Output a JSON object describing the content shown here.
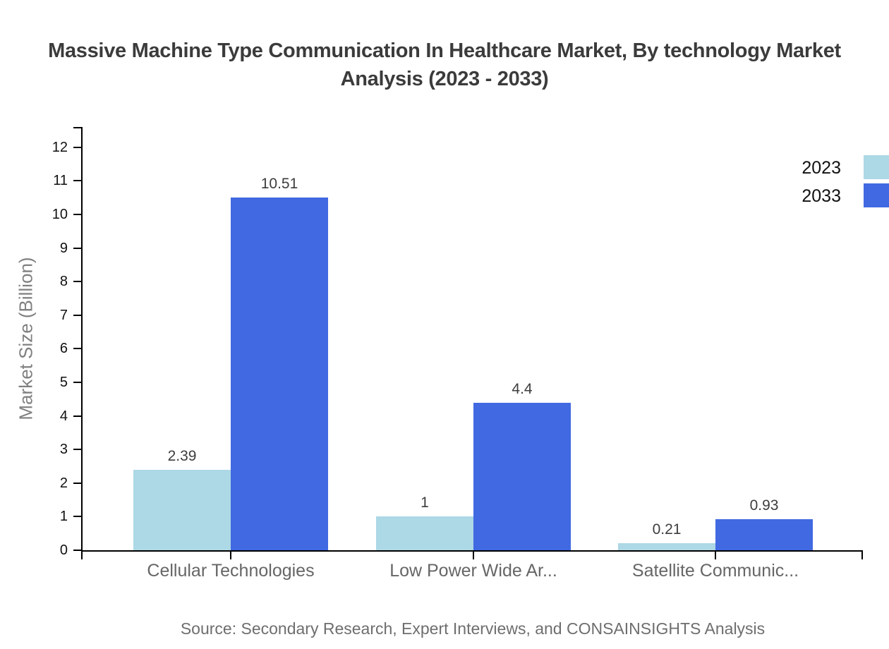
{
  "title": "Massive Machine Type Communication In Healthcare Market, By technology Market Analysis (2023 - 2033)",
  "source": "Source: Secondary Research, Expert Interviews, and CONSAINSIGHTS Analysis",
  "colors": {
    "series_2023": "#ADD8E6",
    "series_2033": "#4169E1",
    "axis": "#000000"
  },
  "chart_data": {
    "type": "bar",
    "title": "Massive Machine Type Communication In Healthcare Market, By technology Market Analysis (2023 - 2033)",
    "categories": [
      "Cellular Technologies",
      "Low Power Wide Ar...",
      "Satellite Communic..."
    ],
    "series": [
      {
        "name": "2023",
        "color": "#ADD8E6",
        "values": [
          2.39,
          1,
          0.21
        ]
      },
      {
        "name": "2033",
        "color": "#4169E1",
        "values": [
          10.51,
          4.4,
          0.93
        ]
      }
    ],
    "xlabel": "",
    "ylabel": "Market Size (Billion)",
    "ylim": [
      0,
      12
    ],
    "ytick_step": 1,
    "yticks": [
      0,
      1,
      2,
      3,
      4,
      5,
      6,
      7,
      8,
      9,
      10,
      11,
      12
    ],
    "grid": false,
    "legend_position": "top-right",
    "value_labels": true
  }
}
